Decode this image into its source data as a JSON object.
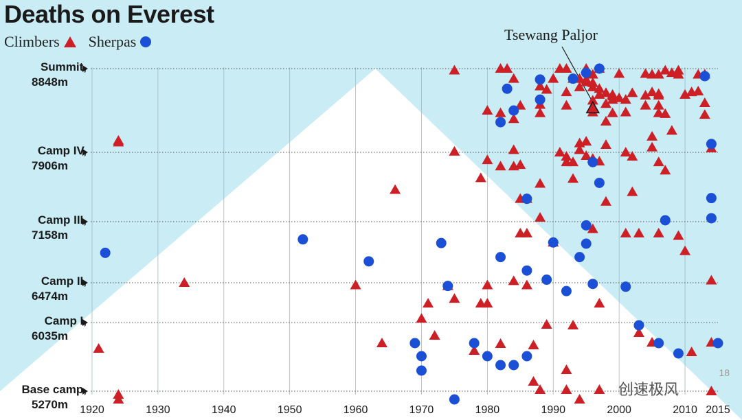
{
  "chart_data": {
    "type": "scatter",
    "title": "Deaths on Everest",
    "legend": {
      "placement": "top-left",
      "climbers_label": "Climbers",
      "sherpas_label": "Sherpas"
    },
    "x_ticks": [
      1920,
      1930,
      1940,
      1950,
      1960,
      1970,
      1980,
      1990,
      2000,
      2010,
      2015
    ],
    "xlim": [
      1919,
      2017
    ],
    "y_levels": [
      {
        "name": "Summit,",
        "altitude": "8848m",
        "v": 0
      },
      {
        "name": "Camp IV,",
        "altitude": "7906m",
        "v": 1
      },
      {
        "name": "Camp III,",
        "altitude": "7158m",
        "v": 2
      },
      {
        "name": "Camp II,",
        "altitude": "6474m",
        "v": 3
      },
      {
        "name": "Camp I,",
        "altitude": "6035m",
        "v": 4
      },
      {
        "name": "Base camp,",
        "altitude": "5270m",
        "v": 5
      }
    ],
    "y_level_unit": "camp index (0 = Summit, 5 = Base camp; fractional = between camps)",
    "mountain_peak_year": 1963,
    "annotation": {
      "text": "Tsewang Paljor",
      "x": 1996,
      "y": 0.47
    },
    "series": [
      {
        "name": "Climbers",
        "marker": "triangle",
        "color": "#cc1f26",
        "points": [
          [
            1921,
            4.38
          ],
          [
            1924,
            5.05
          ],
          [
            1924,
            5.12
          ],
          [
            1924,
            0.88
          ],
          [
            1924,
            0.86
          ],
          [
            1934,
            3.0
          ],
          [
            1960,
            3.06
          ],
          [
            1964,
            4.3
          ],
          [
            1966,
            1.54
          ],
          [
            1971,
            3.52
          ],
          [
            1970,
            3.9
          ],
          [
            1972,
            4.19
          ],
          [
            1974,
            3.08
          ],
          [
            1975,
            3.4
          ],
          [
            1975,
            0.02
          ],
          [
            1975,
            0.99
          ],
          [
            1978,
            4.41
          ],
          [
            1979,
            3.52
          ],
          [
            1979,
            1.37
          ],
          [
            1980,
            3.52
          ],
          [
            1980,
            3.06
          ],
          [
            1980,
            1.11
          ],
          [
            1980,
            0.5
          ],
          [
            1982,
            4.31
          ],
          [
            1982,
            0.53
          ],
          [
            1982,
            1.2
          ],
          [
            1982,
            0.0
          ],
          [
            1983,
            0.0
          ],
          [
            1984,
            0.12
          ],
          [
            1984,
            0.6
          ],
          [
            1984,
            0.97
          ],
          [
            1985,
            0.44
          ],
          [
            1984,
            2.97
          ],
          [
            1984,
            1.2
          ],
          [
            1985,
            1.67
          ],
          [
            1985,
            1.18
          ],
          [
            1985,
            2.19
          ],
          [
            1986,
            2.19
          ],
          [
            1986,
            1.67
          ],
          [
            1986,
            3.06
          ],
          [
            1987,
            4.33
          ],
          [
            1987,
            4.86
          ],
          [
            1988,
            4.98
          ],
          [
            1988,
            1.45
          ],
          [
            1988,
            1.94
          ],
          [
            1988,
            0.43
          ],
          [
            1988,
            0.53
          ],
          [
            1988,
            0.21
          ],
          [
            1989,
            4.03
          ],
          [
            1989,
            0.25
          ],
          [
            1990,
            2.34
          ],
          [
            1990,
            0.12
          ],
          [
            1991,
            0.0
          ],
          [
            1992,
            0.0
          ],
          [
            1991,
            1.0
          ],
          [
            1992,
            1.06
          ],
          [
            1992,
            1.14
          ],
          [
            1992,
            0.28
          ],
          [
            1992,
            0.44
          ],
          [
            1992,
            4.69
          ],
          [
            1992,
            4.98
          ],
          [
            1993,
            1.38
          ],
          [
            1993,
            1.14
          ],
          [
            1993,
            0.12
          ],
          [
            1993,
            4.04
          ],
          [
            1994,
            0.22
          ],
          [
            1994,
            0.97
          ],
          [
            1994,
            0.89
          ],
          [
            1994,
            0.12
          ],
          [
            1994,
            5.12
          ],
          [
            1995,
            0.0
          ],
          [
            1995,
            0.13
          ],
          [
            1995,
            0.87
          ],
          [
            1995,
            1.05
          ],
          [
            1995,
            0.16
          ],
          [
            1996,
            0.07
          ],
          [
            1996,
            0.52
          ],
          [
            1996,
            1.09
          ],
          [
            1996,
            2.12
          ],
          [
            1996,
            0.22
          ],
          [
            1996,
            0.17
          ],
          [
            1996,
            0.38
          ],
          [
            1997,
            0.0
          ],
          [
            1997,
            0.24
          ],
          [
            1997,
            1.13
          ],
          [
            1997,
            0.31
          ],
          [
            1997,
            3.52
          ],
          [
            1997,
            4.98
          ],
          [
            1998,
            1.71
          ],
          [
            1998,
            0.29
          ],
          [
            1998,
            0.42
          ],
          [
            1998,
            0.29
          ],
          [
            1998,
            0.63
          ],
          [
            1998,
            0.91
          ],
          [
            1999,
            0.33
          ],
          [
            1999,
            0.53
          ],
          [
            1999,
            0.31
          ],
          [
            1999,
            0.37
          ],
          [
            2000,
            0.06
          ],
          [
            2000,
            0.35
          ],
          [
            2001,
            0.52
          ],
          [
            2001,
            1.0
          ],
          [
            2001,
            2.19
          ],
          [
            2001,
            0.37
          ],
          [
            2002,
            0.29
          ],
          [
            2002,
            1.06
          ],
          [
            2002,
            1.57
          ],
          [
            2003,
            2.19
          ],
          [
            2003,
            4.15
          ],
          [
            2004,
            0.06
          ],
          [
            2004,
            0.32
          ],
          [
            2004,
            0.44
          ],
          [
            2005,
            0.07
          ],
          [
            2005,
            0.28
          ],
          [
            2005,
            0.94
          ],
          [
            2005,
            0.81
          ],
          [
            2005,
            4.29
          ],
          [
            2006,
            0.32
          ],
          [
            2006,
            0.07
          ],
          [
            2006,
            0.3
          ],
          [
            2006,
            1.14
          ],
          [
            2006,
            0.53
          ],
          [
            2006,
            0.44
          ],
          [
            2006,
            2.19
          ],
          [
            2007,
            1.26
          ],
          [
            2007,
            0.54
          ],
          [
            2007,
            0.02
          ],
          [
            2008,
            0.05
          ],
          [
            2008,
            0.74
          ],
          [
            2009,
            0.07
          ],
          [
            2009,
            2.23
          ],
          [
            2009,
            0.02
          ],
          [
            2010,
            2.48
          ],
          [
            2010,
            0.31
          ],
          [
            2011,
            4.43
          ],
          [
            2011,
            0.28
          ],
          [
            2012,
            0.07
          ],
          [
            2012,
            0.27
          ],
          [
            2013,
            0.07
          ],
          [
            2013,
            0.55
          ],
          [
            2013,
            0.41
          ],
          [
            2013,
            0.07
          ],
          [
            2014,
            2.96
          ],
          [
            2014,
            0.95
          ],
          [
            2014,
            4.29
          ],
          [
            2014,
            5.0
          ]
        ]
      },
      {
        "name": "Sherpas",
        "marker": "circle",
        "color": "#1a4fd6",
        "points": [
          [
            1922,
            2.51
          ],
          [
            1952,
            2.29
          ],
          [
            1962,
            2.65
          ],
          [
            1969,
            4.3
          ],
          [
            1970,
            4.49
          ],
          [
            1970,
            4.7
          ],
          [
            1973,
            2.35
          ],
          [
            1974,
            3.08
          ],
          [
            1975,
            5.12
          ],
          [
            1978,
            4.3
          ],
          [
            1980,
            4.49
          ],
          [
            1982,
            4.62
          ],
          [
            1982,
            2.58
          ],
          [
            1982,
            0.64
          ],
          [
            1983,
            0.24
          ],
          [
            1984,
            0.5
          ],
          [
            1984,
            4.62
          ],
          [
            1986,
            1.67
          ],
          [
            1986,
            2.8
          ],
          [
            1986,
            4.49
          ],
          [
            1988,
            0.13
          ],
          [
            1988,
            0.37
          ],
          [
            1989,
            2.95
          ],
          [
            1990,
            2.34
          ],
          [
            1992,
            3.21
          ],
          [
            1993,
            0.12
          ],
          [
            1994,
            2.58
          ],
          [
            1995,
            0.05
          ],
          [
            1995,
            2.06
          ],
          [
            1995,
            2.36
          ],
          [
            1996,
            1.14
          ],
          [
            1996,
            3.03
          ],
          [
            1997,
            0.0
          ],
          [
            1997,
            1.44
          ],
          [
            2001,
            3.1
          ],
          [
            2003,
            4.04
          ],
          [
            2006,
            4.3
          ],
          [
            2007,
            1.98
          ],
          [
            2009,
            4.45
          ],
          [
            2013,
            0.09
          ],
          [
            2014,
            0.9
          ],
          [
            2014,
            1.66
          ],
          [
            2014,
            1.95
          ],
          [
            2015,
            4.3
          ]
        ]
      }
    ]
  },
  "page_number": "18",
  "watermark": "创速极风"
}
